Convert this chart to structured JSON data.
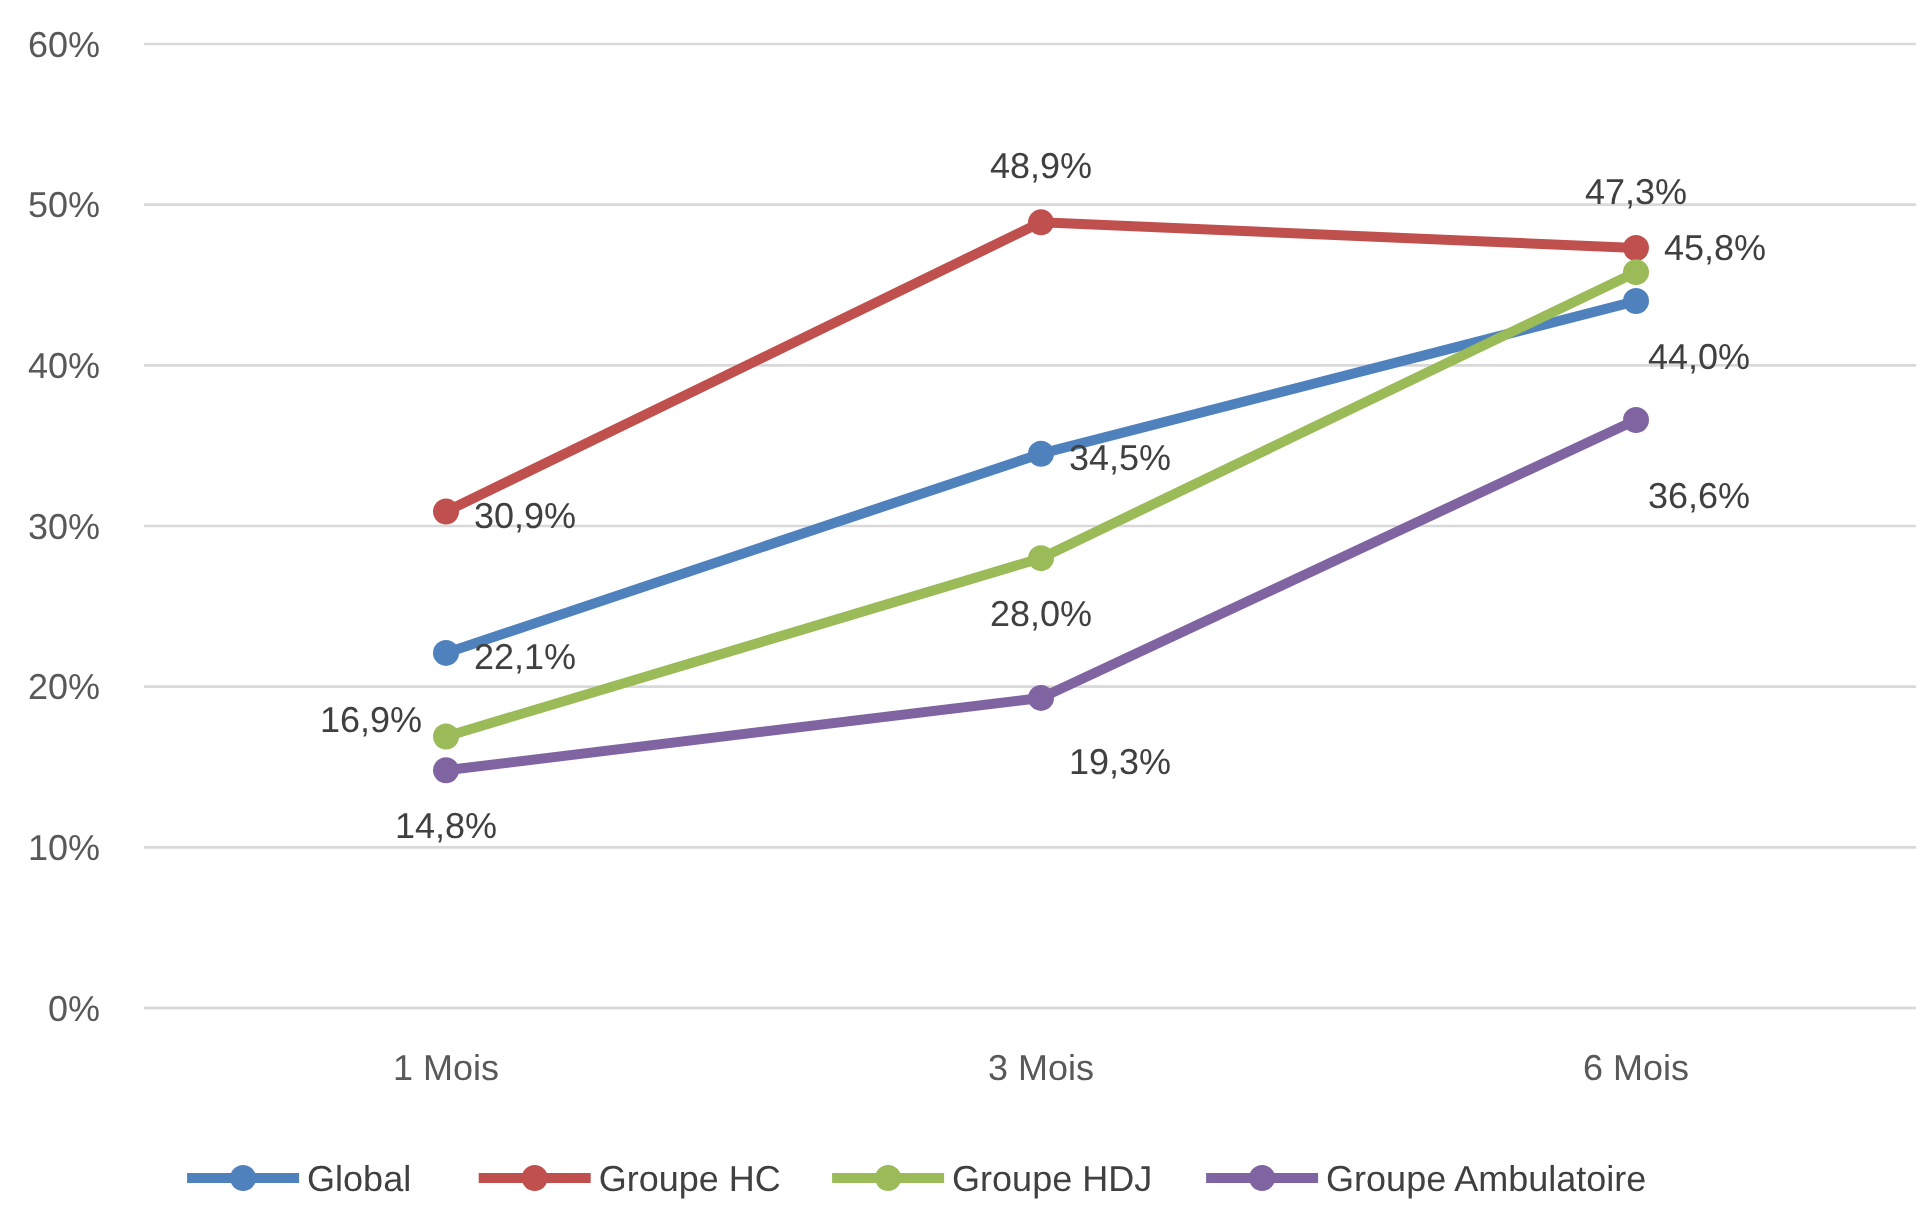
{
  "chart_data": {
    "type": "line",
    "categories": [
      "1 Mois",
      "3 Mois",
      "6 Mois"
    ],
    "series": [
      {
        "name": "Global",
        "color": "#4f81bd",
        "values": [
          22.1,
          34.5,
          44.0
        ],
        "value_labels": [
          "22,1%",
          "34,5%",
          "44,0%"
        ]
      },
      {
        "name": "Groupe HC",
        "color": "#c0504d",
        "values": [
          30.9,
          48.9,
          47.3
        ],
        "value_labels": [
          "30,9%",
          "48,9%",
          "47,3%"
        ]
      },
      {
        "name": "Groupe HDJ",
        "color": "#9bbb59",
        "values": [
          16.9,
          28.0,
          45.8
        ],
        "value_labels": [
          "16,9%",
          "28,0%",
          "45,8%"
        ]
      },
      {
        "name": "Groupe Ambulatoire",
        "color": "#8064a2",
        "values": [
          14.8,
          19.3,
          36.6
        ],
        "value_labels": [
          "14,8%",
          "19,3%",
          "36,6%"
        ]
      }
    ],
    "ylim": [
      0,
      60
    ],
    "yticks": [
      {
        "value": 0,
        "label": "0%"
      },
      {
        "value": 10,
        "label": "10%"
      },
      {
        "value": 20,
        "label": "20%"
      },
      {
        "value": 30,
        "label": "30%"
      },
      {
        "value": 40,
        "label": "40%"
      },
      {
        "value": 50,
        "label": "50%"
      },
      {
        "value": 60,
        "label": "60%"
      }
    ],
    "grid": "y",
    "legend": "bottom",
    "marker": "circle",
    "line_style": "solid"
  }
}
